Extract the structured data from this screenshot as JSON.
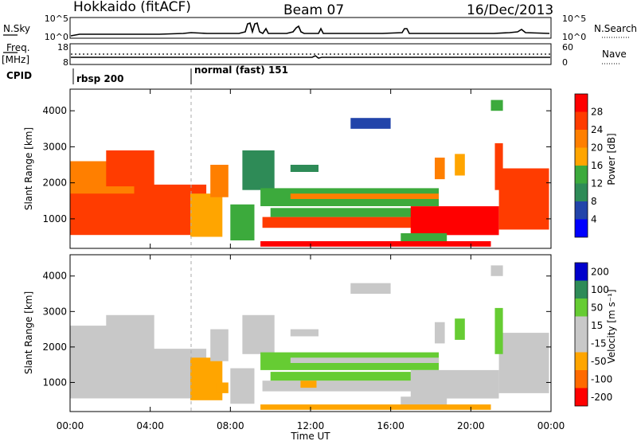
{
  "header": {
    "station": "Hokkaido (fitACF)",
    "beam": "Beam 07",
    "date": "16/Dec/2013"
  },
  "strips": {
    "nsky_label": "N.Sky",
    "nsky_ticks": [
      "10^5",
      "10^0"
    ],
    "nsearch_label": "N.Search",
    "nsearch_ticks": [
      "10^5",
      "10^0"
    ],
    "freq_label_top": "Freq.",
    "freq_label_bottom": "[MHz]",
    "freq_ticks": [
      "18",
      "8"
    ],
    "nave_label": "Nave",
    "nave_ticks": [
      "60",
      "0"
    ],
    "cpid_label": "CPID",
    "cpid_modes": [
      {
        "name": "rbsp 200",
        "start": "00:00"
      },
      {
        "name": "normal (fast) 151",
        "start": "06:00"
      }
    ]
  },
  "colors": {
    "power": [
      "#0000ff",
      "#2244aa",
      "#2e8b57",
      "#3caa3c",
      "#ffa500",
      "#ff7f00",
      "#ff3c00",
      "#ff0000"
    ],
    "velocity": [
      "#ff0000",
      "#ff6a00",
      "#ffa500",
      "#c8c8c8",
      "#c8c8c8",
      "#66cc33",
      "#2e8b57",
      "#0000cc"
    ],
    "trace": "#000000",
    "gridline": "#aaaaaa"
  },
  "chart_data": [
    {
      "type": "heatmap",
      "title": "",
      "xlabel": "Time UT",
      "ylabel": "Slant Range [km]",
      "xlim": [
        "00:00",
        "24:00"
      ],
      "ylim": [
        180,
        4600
      ],
      "x_ticks": [
        "00:00",
        "04:00",
        "08:00",
        "12:00",
        "16:00",
        "20:00",
        "00:00"
      ],
      "y_ticks": [
        1000,
        2000,
        3000,
        4000
      ],
      "colorbar": {
        "label": "Power [dB]",
        "levels": [
          4,
          8,
          12,
          16,
          20,
          24,
          28
        ],
        "range": [
          0,
          32
        ]
      },
      "regions": [
        {
          "t0": 0.0,
          "t1": 6.8,
          "r0": 550,
          "r1": 1950,
          "v": 27
        },
        {
          "t0": 0.0,
          "t1": 3.2,
          "r0": 1700,
          "r1": 2600,
          "v": 22
        },
        {
          "t0": 1.8,
          "t1": 4.2,
          "r0": 1900,
          "r1": 2900,
          "v": 26
        },
        {
          "t0": 6.0,
          "t1": 7.6,
          "r0": 500,
          "r1": 1700,
          "v": 17
        },
        {
          "t0": 7.0,
          "t1": 7.9,
          "r0": 1600,
          "r1": 2500,
          "v": 20
        },
        {
          "t0": 8.0,
          "t1": 9.2,
          "r0": 400,
          "r1": 1400,
          "v": 14
        },
        {
          "t0": 8.6,
          "t1": 10.2,
          "r0": 1800,
          "r1": 2900,
          "v": 9
        },
        {
          "t0": 9.5,
          "t1": 18.4,
          "r0": 1350,
          "r1": 1850,
          "v": 13
        },
        {
          "t0": 11.0,
          "t1": 18.4,
          "r0": 1550,
          "r1": 1700,
          "v": 21
        },
        {
          "t0": 9.6,
          "t1": 18.8,
          "r0": 750,
          "r1": 1050,
          "v": 27
        },
        {
          "t0": 10.0,
          "t1": 18.0,
          "r0": 1050,
          "r1": 1300,
          "v": 15
        },
        {
          "t0": 17.0,
          "t1": 21.4,
          "r0": 550,
          "r1": 1350,
          "v": 28
        },
        {
          "t0": 16.5,
          "t1": 18.8,
          "r0": 300,
          "r1": 600,
          "v": 15
        },
        {
          "t0": 9.5,
          "t1": 21.0,
          "r0": 230,
          "r1": 380,
          "v": 28
        },
        {
          "t0": 18.2,
          "t1": 18.7,
          "r0": 2100,
          "r1": 2700,
          "v": 21
        },
        {
          "t0": 19.2,
          "t1": 19.7,
          "r0": 2200,
          "r1": 2800,
          "v": 19
        },
        {
          "t0": 11.0,
          "t1": 12.4,
          "r0": 2300,
          "r1": 2500,
          "v": 10
        },
        {
          "t0": 14.0,
          "t1": 16.0,
          "r0": 3500,
          "r1": 3800,
          "v": 7
        },
        {
          "t0": 21.4,
          "t1": 23.9,
          "r0": 700,
          "r1": 2400,
          "v": 27
        },
        {
          "t0": 21.2,
          "t1": 21.6,
          "r0": 1800,
          "r1": 3100,
          "v": 25
        },
        {
          "t0": 21.0,
          "t1": 21.6,
          "r0": 4000,
          "r1": 4300,
          "v": 13
        }
      ]
    },
    {
      "type": "heatmap",
      "title": "",
      "xlabel": "Time UT",
      "ylabel": "Slant Range [km]",
      "xlim": [
        "00:00",
        "24:00"
      ],
      "ylim": [
        180,
        4600
      ],
      "x_ticks": [
        "00:00",
        "04:00",
        "08:00",
        "12:00",
        "16:00",
        "20:00",
        "00:00"
      ],
      "y_ticks": [
        1000,
        2000,
        3000,
        4000
      ],
      "colorbar": {
        "label": "Velocity [m s⁻¹]",
        "levels": [
          -200,
          -100,
          -50,
          -15,
          15,
          50,
          100,
          200
        ],
        "range": [
          -250,
          250
        ]
      },
      "regions": [
        {
          "t0": 0.0,
          "t1": 6.8,
          "r0": 550,
          "r1": 1950,
          "v": 0
        },
        {
          "t0": 0.0,
          "t1": 3.2,
          "r0": 1700,
          "r1": 2600,
          "v": 5
        },
        {
          "t0": 1.8,
          "t1": 4.2,
          "r0": 1900,
          "r1": 2900,
          "v": -5
        },
        {
          "t0": 6.0,
          "t1": 7.6,
          "r0": 500,
          "r1": 1700,
          "v": -60
        },
        {
          "t0": 7.0,
          "t1": 7.9,
          "r0": 1600,
          "r1": 2500,
          "v": 0
        },
        {
          "t0": 8.0,
          "t1": 9.2,
          "r0": 400,
          "r1": 1400,
          "v": 0
        },
        {
          "t0": 8.6,
          "t1": 10.2,
          "r0": 1800,
          "r1": 2900,
          "v": 0
        },
        {
          "t0": 9.5,
          "t1": 18.4,
          "r0": 1350,
          "r1": 1850,
          "v": 40
        },
        {
          "t0": 11.0,
          "t1": 18.4,
          "r0": 1550,
          "r1": 1700,
          "v": 0
        },
        {
          "t0": 9.6,
          "t1": 18.8,
          "r0": 750,
          "r1": 1050,
          "v": 0
        },
        {
          "t0": 10.0,
          "t1": 18.0,
          "r0": 1050,
          "r1": 1300,
          "v": 45
        },
        {
          "t0": 17.0,
          "t1": 21.4,
          "r0": 550,
          "r1": 1350,
          "v": 0
        },
        {
          "t0": 16.5,
          "t1": 18.8,
          "r0": 300,
          "r1": 600,
          "v": 0
        },
        {
          "t0": 9.5,
          "t1": 21.0,
          "r0": 230,
          "r1": 380,
          "v": -60
        },
        {
          "t0": 18.2,
          "t1": 18.7,
          "r0": 2100,
          "r1": 2700,
          "v": 0
        },
        {
          "t0": 19.2,
          "t1": 19.7,
          "r0": 2200,
          "r1": 2800,
          "v": 40
        },
        {
          "t0": 11.0,
          "t1": 12.4,
          "r0": 2300,
          "r1": 2500,
          "v": 0
        },
        {
          "t0": 14.0,
          "t1": 16.0,
          "r0": 3500,
          "r1": 3800,
          "v": 0
        },
        {
          "t0": 21.4,
          "t1": 23.9,
          "r0": 700,
          "r1": 2400,
          "v": 0
        },
        {
          "t0": 21.2,
          "t1": 21.6,
          "r0": 1800,
          "r1": 3100,
          "v": 45
        },
        {
          "t0": 21.0,
          "t1": 21.6,
          "r0": 4000,
          "r1": 4300,
          "v": 0
        },
        {
          "t0": 11.5,
          "t1": 12.3,
          "r0": 850,
          "r1": 1050,
          "v": -60
        },
        {
          "t0": 7.3,
          "t1": 7.9,
          "r0": 700,
          "r1": 1000,
          "v": -60
        }
      ]
    }
  ]
}
